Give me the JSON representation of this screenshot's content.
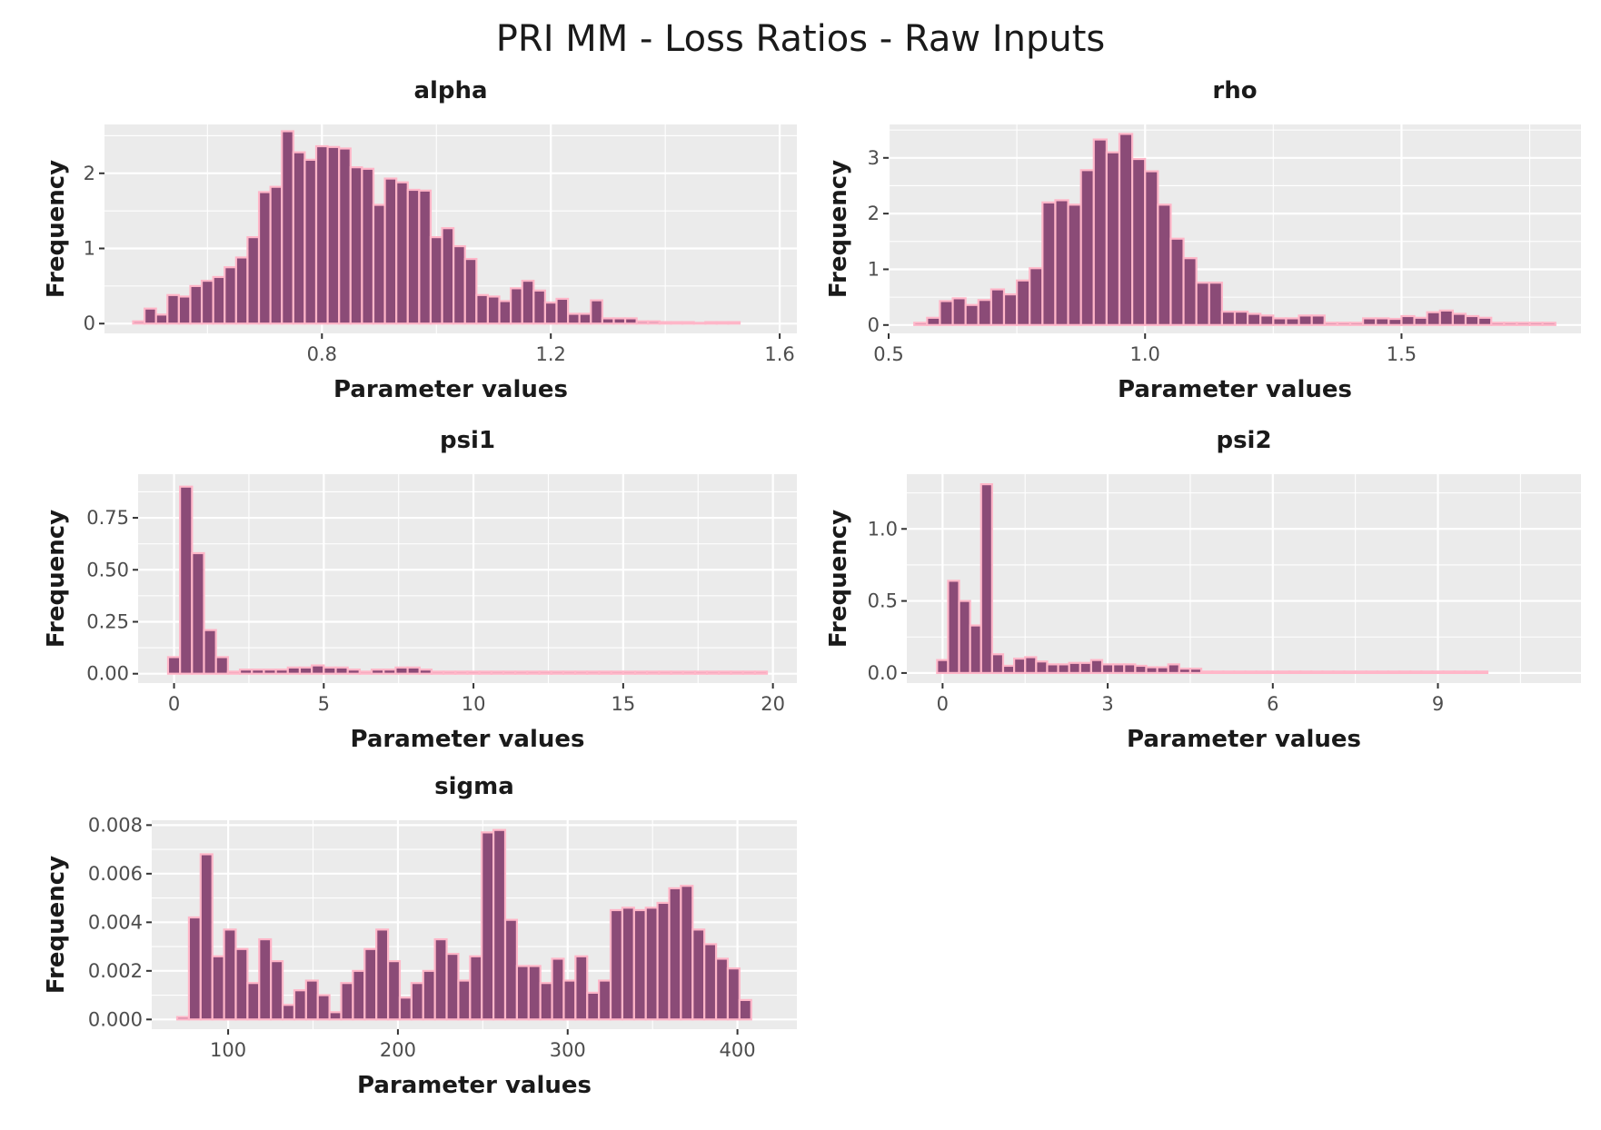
{
  "title": "PRI MM - Loss Ratios - Raw Inputs",
  "colors": {
    "bar_fill": "#8b4b77",
    "bar_stroke": "#ffb6c8",
    "panel_bg": "#ebebeb",
    "grid": "#ffffff"
  },
  "chart_data": [
    {
      "type": "bar",
      "title": "alpha",
      "xlabel": "Parameter values",
      "ylabel": "Frequency",
      "xlim": [
        0.42,
        1.63
      ],
      "ylim": [
        -0.13,
        2.65
      ],
      "xticks": [
        0.8,
        1.2,
        1.6
      ],
      "xtick_labels": [
        "0.8",
        "1.2",
        "1.6"
      ],
      "yticks": [
        0,
        1,
        2
      ],
      "ytick_labels": [
        "0",
        "1",
        "2"
      ],
      "bin_start": 0.47,
      "bin_width": 0.02,
      "values": [
        0.03,
        0.2,
        0.12,
        0.38,
        0.36,
        0.5,
        0.57,
        0.62,
        0.75,
        0.88,
        1.15,
        1.75,
        1.82,
        2.56,
        2.28,
        2.18,
        2.36,
        2.35,
        2.33,
        2.08,
        2.06,
        1.58,
        1.93,
        1.88,
        1.78,
        1.77,
        1.15,
        1.27,
        1.03,
        0.86,
        0.38,
        0.36,
        0.3,
        0.47,
        0.57,
        0.44,
        0.28,
        0.33,
        0.13,
        0.13,
        0.31,
        0.07,
        0.07,
        0.07,
        0.03,
        0.03,
        0.02,
        0.02,
        0.02,
        0.01,
        0.02,
        0.02,
        0.02
      ]
    },
    {
      "type": "bar",
      "title": "rho",
      "xlabel": "Parameter values",
      "ylabel": "Frequency",
      "xlim": [
        0.5,
        1.85
      ],
      "ylim": [
        -0.15,
        3.6
      ],
      "xticks": [
        0.5,
        1.0,
        1.5
      ],
      "xtick_labels": [
        "0.5",
        "1.0",
        "1.5"
      ],
      "yticks": [
        0,
        1,
        2,
        3
      ],
      "ytick_labels": [
        "0",
        "1",
        "2",
        "3"
      ],
      "bin_start": 0.55,
      "bin_width": 0.025,
      "values": [
        0.04,
        0.13,
        0.43,
        0.48,
        0.36,
        0.45,
        0.64,
        0.55,
        0.8,
        1.02,
        2.2,
        2.24,
        2.16,
        2.78,
        3.33,
        3.1,
        3.43,
        2.98,
        2.76,
        2.16,
        1.55,
        1.2,
        0.76,
        0.76,
        0.24,
        0.24,
        0.2,
        0.17,
        0.12,
        0.12,
        0.17,
        0.17,
        0.04,
        0.04,
        0.04,
        0.12,
        0.12,
        0.11,
        0.16,
        0.13,
        0.23,
        0.26,
        0.2,
        0.16,
        0.13,
        0.04,
        0.04,
        0.04,
        0.04,
        0.04
      ]
    },
    {
      "type": "bar",
      "title": "psi1",
      "xlabel": "Parameter values",
      "ylabel": "Frequency",
      "xlim": [
        -1.2,
        20.8
      ],
      "ylim": [
        -0.045,
        0.96
      ],
      "xticks": [
        0,
        5,
        10,
        15,
        20
      ],
      "xtick_labels": [
        "0",
        "5",
        "10",
        "15",
        "20"
      ],
      "yticks": [
        0,
        0.25,
        0.5,
        0.75
      ],
      "ytick_labels": [
        "0.00",
        "0.25",
        "0.50",
        "0.75"
      ],
      "bin_start": -0.2,
      "bin_width": 0.4,
      "values": [
        0.08,
        0.9,
        0.58,
        0.21,
        0.08,
        0.01,
        0.02,
        0.02,
        0.02,
        0.02,
        0.03,
        0.03,
        0.04,
        0.03,
        0.03,
        0.02,
        0.01,
        0.02,
        0.02,
        0.03,
        0.03,
        0.02,
        0.01,
        0.01,
        0.01,
        0.01,
        0.01,
        0.01,
        0.01,
        0.01,
        0.01,
        0.01,
        0.01,
        0.01,
        0.01,
        0.01,
        0.01,
        0.01,
        0.01,
        0.01,
        0.01,
        0.01,
        0.01,
        0.01,
        0.01,
        0.01,
        0.01,
        0.01,
        0.01,
        0.01
      ]
    },
    {
      "type": "bar",
      "title": "psi2",
      "xlabel": "Parameter values",
      "ylabel": "Frequency",
      "xlim": [
        -0.65,
        11.6
      ],
      "ylim": [
        -0.07,
        1.38
      ],
      "xticks": [
        0,
        3,
        6,
        9
      ],
      "xtick_labels": [
        "0",
        "3",
        "6",
        "9"
      ],
      "yticks": [
        0,
        0.5,
        1
      ],
      "ytick_labels": [
        "0.0",
        "0.5",
        "1.0"
      ],
      "bin_start": -0.1,
      "bin_width": 0.2,
      "values": [
        0.09,
        0.64,
        0.5,
        0.33,
        1.31,
        0.13,
        0.05,
        0.1,
        0.11,
        0.08,
        0.06,
        0.06,
        0.07,
        0.07,
        0.09,
        0.06,
        0.06,
        0.06,
        0.05,
        0.04,
        0.04,
        0.06,
        0.03,
        0.03,
        0.01,
        0.01,
        0.01,
        0.01,
        0.01,
        0.01,
        0.01,
        0.01,
        0.01,
        0.01,
        0.01,
        0.01,
        0.01,
        0.01,
        0.01,
        0.01,
        0.01,
        0.01,
        0.01,
        0.01,
        0.01,
        0.01,
        0.01,
        0.01,
        0.01,
        0.01
      ]
    },
    {
      "type": "bar",
      "title": "sigma",
      "xlabel": "Parameter values",
      "ylabel": "Frequency",
      "xlim": [
        55,
        435
      ],
      "ylim": [
        -0.0004,
        0.0082
      ],
      "xticks": [
        100,
        200,
        300,
        400
      ],
      "xtick_labels": [
        "100",
        "200",
        "300",
        "400"
      ],
      "yticks": [
        0,
        0.002,
        0.004,
        0.006,
        0.008
      ],
      "ytick_labels": [
        "0.000",
        "0.002",
        "0.004",
        "0.006",
        "0.008"
      ],
      "bin_start": 70,
      "bin_width": 6.9,
      "values": [
        0.0001,
        0.0042,
        0.0068,
        0.0026,
        0.0037,
        0.0029,
        0.0015,
        0.0033,
        0.0024,
        0.0006,
        0.0012,
        0.0016,
        0.001,
        0.0003,
        0.0015,
        0.002,
        0.0029,
        0.0037,
        0.0024,
        0.0009,
        0.0015,
        0.002,
        0.0033,
        0.0027,
        0.0016,
        0.0026,
        0.0077,
        0.0078,
        0.0041,
        0.0022,
        0.0022,
        0.0015,
        0.0025,
        0.0016,
        0.0026,
        0.0011,
        0.0016,
        0.0045,
        0.0046,
        0.0045,
        0.0046,
        0.0048,
        0.0054,
        0.0055,
        0.0037,
        0.0031,
        0.0025,
        0.0021,
        0.0008
      ]
    }
  ]
}
